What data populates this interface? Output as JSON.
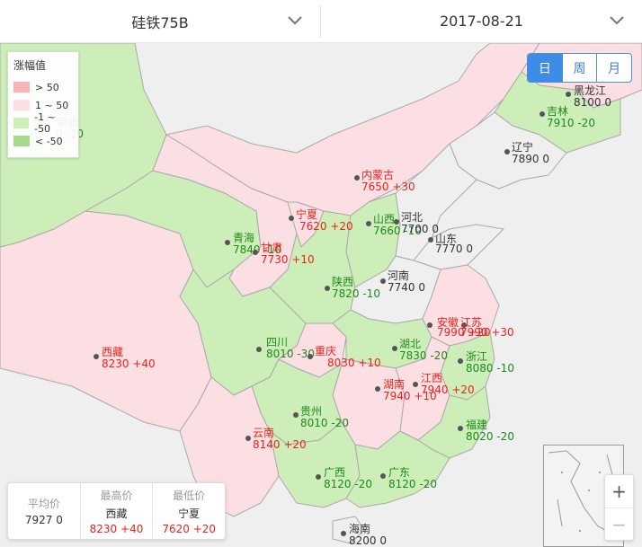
{
  "header": {
    "product": "硅铁75B",
    "date": "2017-08-21"
  },
  "period_buttons": [
    {
      "label": "日",
      "active": true
    },
    {
      "label": "周",
      "active": false
    },
    {
      "label": "月",
      "active": false
    }
  ],
  "legend": {
    "title": "涨幅值",
    "items": [
      {
        "label": "> 50",
        "color": "#f9b3b3"
      },
      {
        "label": "1 ~ 50",
        "color": "#fcdfe2"
      },
      {
        "label": "-1 ~ -50",
        "color": "#cdeeb9"
      },
      {
        "label": "< -50",
        "color": "#a7d98a"
      }
    ]
  },
  "colors": {
    "rise": "#e8231f",
    "fall": "#1d8a1d",
    "flat_fill": "#efefef",
    "rise_fill": "#fcdfe2",
    "fall_fill": "#cdeeb9"
  },
  "provinces": [
    {
      "name": "黑龙江",
      "price": "8100",
      "change": "0",
      "trend": "flat"
    },
    {
      "name": "吉林",
      "price": "7910",
      "change": "-20",
      "trend": "down"
    },
    {
      "name": "辽宁",
      "price": "7890",
      "change": "0",
      "trend": "flat"
    },
    {
      "name": "内蒙古",
      "price": "7650",
      "change": "+30",
      "trend": "up"
    },
    {
      "name": "宁夏",
      "price": "7620",
      "change": "+20",
      "trend": "up"
    },
    {
      "name": "山西",
      "price": "7660",
      "change": "-10",
      "trend": "down"
    },
    {
      "name": "河北",
      "price": "7700",
      "change": "0",
      "trend": "flat"
    },
    {
      "name": "青海",
      "price": "7840",
      "change": "-10",
      "trend": "down"
    },
    {
      "name": "甘肃",
      "price": "7730",
      "change": "+10",
      "trend": "up"
    },
    {
      "name": "山东",
      "price": "7770",
      "change": "0",
      "trend": "flat"
    },
    {
      "name": "陕西",
      "price": "7820",
      "change": "-10",
      "trend": "down"
    },
    {
      "name": "河南",
      "price": "7740",
      "change": "0",
      "trend": "flat"
    },
    {
      "name": "安徽",
      "price": "7990",
      "change": "+20",
      "trend": "up"
    },
    {
      "name": "江苏",
      "price": "7990",
      "change": "+30",
      "trend": "up"
    },
    {
      "name": "西藏",
      "price": "8230",
      "change": "+40",
      "trend": "up"
    },
    {
      "name": "四川",
      "price": "8010",
      "change": "-30",
      "trend": "down"
    },
    {
      "name": "湖北",
      "price": "7830",
      "change": "-20",
      "trend": "down"
    },
    {
      "name": "重庆",
      "price": "8030",
      "change": "+10",
      "trend": "up"
    },
    {
      "name": "浙江",
      "price": "8080",
      "change": "-10",
      "trend": "down"
    },
    {
      "name": "湖南",
      "price": "7940",
      "change": "+10",
      "trend": "up"
    },
    {
      "name": "江西",
      "price": "7940",
      "change": "+20",
      "trend": "up"
    },
    {
      "name": "贵州",
      "price": "8010",
      "change": "-20",
      "trend": "down"
    },
    {
      "name": "云南",
      "price": "8140",
      "change": "+20",
      "trend": "up"
    },
    {
      "name": "福建",
      "price": "8020",
      "change": "-20",
      "trend": "down"
    },
    {
      "name": "广西",
      "price": "8120",
      "change": "-20",
      "trend": "down"
    },
    {
      "name": "广东",
      "price": "8120",
      "change": "-20",
      "trend": "down"
    },
    {
      "name": "海南",
      "price": "8200",
      "change": "0",
      "trend": "flat"
    },
    {
      "name": "新疆",
      "price": "",
      "change": "0 -20",
      "trend": "down"
    }
  ],
  "stats": {
    "avg": {
      "label": "平均价",
      "value": "7927",
      "change": "0",
      "trend": "flat"
    },
    "max": {
      "label": "最高价",
      "name": "西藏",
      "value": "8230",
      "change": "+40",
      "trend": "up"
    },
    "min": {
      "label": "最低价",
      "name": "宁夏",
      "value": "7620",
      "change": "+20",
      "trend": "up"
    }
  },
  "zoom": {
    "in": "+",
    "out": "−"
  }
}
